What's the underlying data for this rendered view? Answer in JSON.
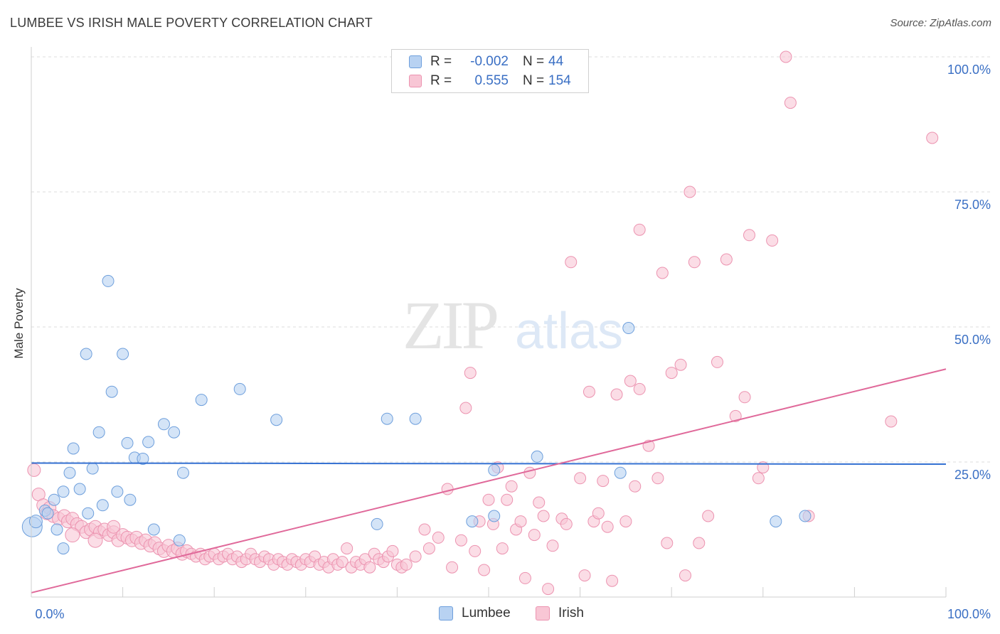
{
  "title": "LUMBEE VS IRISH MALE POVERTY CORRELATION CHART",
  "source": "Source: ZipAtlas.com",
  "watermark": {
    "zip": "ZIP",
    "atlas": "atlas"
  },
  "legend": {
    "rows": [
      {
        "r_label": "R =",
        "r_value": "-0.002",
        "n_label": "N =",
        "n_value": "44"
      },
      {
        "r_label": "R =",
        "r_value": "0.555",
        "n_label": "N =",
        "n_value": "154"
      }
    ]
  },
  "bottom_legend": {
    "lumbee": "Lumbee",
    "irish": "Irish"
  },
  "colors": {
    "lumbee_fill": "#b8d2f2",
    "lumbee_stroke": "#6e9fdc",
    "lumbee_line": "#3571d2",
    "irish_fill": "#f8c6d5",
    "irish_stroke": "#ec93b0",
    "irish_line": "#e0699a",
    "tick_label": "#3a6fc4",
    "grid": "#dddddd"
  },
  "chart_data": {
    "type": "scatter",
    "title": "LUMBEE VS IRISH MALE POVERTY CORRELATION CHART",
    "xlabel": "",
    "ylabel": "Male Poverty",
    "xlim": [
      0,
      100
    ],
    "ylim": [
      0,
      100
    ],
    "x_tick_labels": [
      "0.0%",
      "100.0%"
    ],
    "y_ticks": [
      {
        "value": 25,
        "label": "25.0%"
      },
      {
        "value": 50,
        "label": "50.0%"
      },
      {
        "value": 75,
        "label": "75.0%"
      },
      {
        "value": 100,
        "label": "100.0%"
      }
    ],
    "grid": true,
    "series": [
      {
        "name": "Lumbee",
        "r": -0.002,
        "n": 44,
        "trendline": {
          "x": [
            0,
            100
          ],
          "y": [
            24.8,
            24.6
          ]
        },
        "points": [
          [
            0.1,
            13.0,
            14
          ],
          [
            0.5,
            14.0,
            9
          ],
          [
            1.5,
            16.0,
            8
          ],
          [
            2.5,
            18.0,
            8
          ],
          [
            1.8,
            15.5,
            8
          ],
          [
            2.8,
            12.5,
            8
          ],
          [
            3.5,
            19.5,
            8
          ],
          [
            4.2,
            23.0,
            8
          ],
          [
            3.5,
            9.0,
            8
          ],
          [
            4.6,
            27.5,
            8
          ],
          [
            5.3,
            20.0,
            8
          ],
          [
            6.2,
            15.5,
            8
          ],
          [
            6.7,
            23.8,
            8
          ],
          [
            7.4,
            30.5,
            8
          ],
          [
            7.8,
            17.0,
            8
          ],
          [
            8.4,
            58.5,
            8
          ],
          [
            8.8,
            38.0,
            8
          ],
          [
            9.4,
            19.5,
            8
          ],
          [
            10.0,
            45.0,
            8
          ],
          [
            6.0,
            45.0,
            8
          ],
          [
            10.5,
            28.5,
            8
          ],
          [
            10.8,
            18.0,
            8
          ],
          [
            11.3,
            25.8,
            8
          ],
          [
            12.2,
            25.6,
            8
          ],
          [
            12.8,
            28.7,
            8
          ],
          [
            13.4,
            12.5,
            8
          ],
          [
            14.5,
            32.0,
            8
          ],
          [
            15.6,
            30.5,
            8
          ],
          [
            16.2,
            10.5,
            8
          ],
          [
            16.6,
            23.0,
            8
          ],
          [
            18.6,
            36.5,
            8
          ],
          [
            22.8,
            38.5,
            8
          ],
          [
            26.8,
            32.8,
            8
          ],
          [
            37.8,
            13.5,
            8
          ],
          [
            38.9,
            33.0,
            8
          ],
          [
            42.0,
            33.0,
            8
          ],
          [
            48.2,
            14.0,
            8
          ],
          [
            50.6,
            15.0,
            8
          ],
          [
            50.6,
            23.5,
            8
          ],
          [
            55.3,
            26.0,
            8
          ],
          [
            65.3,
            49.8,
            8
          ],
          [
            64.4,
            23.0,
            8
          ],
          [
            81.4,
            14.0,
            8
          ],
          [
            84.6,
            15.0,
            8
          ]
        ]
      },
      {
        "name": "Irish",
        "r": 0.555,
        "n": 154,
        "trendline": {
          "x": [
            0,
            100
          ],
          "y": [
            0.8,
            42.2
          ]
        },
        "points": [
          [
            0.3,
            23.5,
            9
          ],
          [
            0.8,
            19.0,
            9
          ],
          [
            1.3,
            17.0,
            9
          ],
          [
            1.7,
            15.5,
            9
          ],
          [
            2.0,
            16.5,
            9
          ],
          [
            2.4,
            15.0,
            9
          ],
          [
            3.0,
            14.5,
            9
          ],
          [
            3.6,
            15.0,
            9
          ],
          [
            4.0,
            14.0,
            9
          ],
          [
            4.5,
            14.5,
            9
          ],
          [
            5.0,
            13.5,
            9
          ],
          [
            5.5,
            13.0,
            9
          ],
          [
            6.0,
            12.0,
            9
          ],
          [
            6.5,
            12.5,
            9
          ],
          [
            7.0,
            13.0,
            9
          ],
          [
            7.5,
            12.0,
            9
          ],
          [
            8.0,
            12.5,
            9
          ],
          [
            8.5,
            11.5,
            9
          ],
          [
            9.0,
            12.0,
            9
          ],
          [
            9.5,
            10.5,
            9
          ],
          [
            10.0,
            11.5,
            9
          ],
          [
            10.5,
            11.0,
            9
          ],
          [
            11.0,
            10.5,
            9
          ],
          [
            11.5,
            11.0,
            9
          ],
          [
            12.0,
            10.0,
            9
          ],
          [
            12.5,
            10.5,
            9
          ],
          [
            13.0,
            9.5,
            9
          ],
          [
            13.5,
            10.0,
            9
          ],
          [
            14.0,
            9.0,
            9
          ],
          [
            14.5,
            8.5,
            9
          ],
          [
            15.0,
            9.5,
            9
          ],
          [
            15.5,
            8.5,
            9
          ],
          [
            16.0,
            9.0,
            9
          ],
          [
            16.5,
            8.0,
            9
          ],
          [
            17.0,
            8.5,
            9
          ],
          [
            17.5,
            8.0,
            8
          ],
          [
            18.0,
            7.5,
            8
          ],
          [
            18.5,
            8.0,
            8
          ],
          [
            19.0,
            7.0,
            8
          ],
          [
            19.5,
            7.5,
            8
          ],
          [
            20.0,
            8.0,
            8
          ],
          [
            20.5,
            7.0,
            8
          ],
          [
            21.0,
            7.5,
            8
          ],
          [
            21.5,
            8.0,
            8
          ],
          [
            22.0,
            7.0,
            8
          ],
          [
            22.5,
            7.5,
            8
          ],
          [
            23.0,
            6.5,
            8
          ],
          [
            23.5,
            7.0,
            8
          ],
          [
            24.0,
            8.0,
            8
          ],
          [
            24.5,
            7.0,
            8
          ],
          [
            25.0,
            6.5,
            8
          ],
          [
            25.5,
            7.5,
            8
          ],
          [
            26.0,
            7.0,
            8
          ],
          [
            26.5,
            6.0,
            8
          ],
          [
            27.0,
            7.0,
            8
          ],
          [
            27.5,
            6.5,
            8
          ],
          [
            28.0,
            6.0,
            8
          ],
          [
            28.5,
            7.0,
            8
          ],
          [
            29.0,
            6.5,
            8
          ],
          [
            29.5,
            6.0,
            8
          ],
          [
            30.0,
            7.0,
            8
          ],
          [
            30.5,
            6.5,
            8
          ],
          [
            31.0,
            7.5,
            8
          ],
          [
            31.5,
            6.0,
            8
          ],
          [
            32.0,
            6.5,
            8
          ],
          [
            32.5,
            5.5,
            8
          ],
          [
            33.0,
            7.0,
            8
          ],
          [
            33.5,
            6.0,
            8
          ],
          [
            34.0,
            6.5,
            8
          ],
          [
            34.5,
            9.0,
            8
          ],
          [
            35.0,
            5.5,
            8
          ],
          [
            35.5,
            6.5,
            8
          ],
          [
            36.0,
            6.0,
            8
          ],
          [
            36.5,
            7.0,
            8
          ],
          [
            37.0,
            5.5,
            8
          ],
          [
            37.5,
            8.0,
            8
          ],
          [
            38.0,
            7.0,
            8
          ],
          [
            38.5,
            6.5,
            8
          ],
          [
            39.0,
            7.5,
            8
          ],
          [
            39.5,
            8.5,
            8
          ],
          [
            40.0,
            6.0,
            8
          ],
          [
            40.5,
            5.5,
            8
          ],
          [
            41.0,
            6.0,
            8
          ],
          [
            42.0,
            7.5,
            8
          ],
          [
            43.0,
            12.5,
            8
          ],
          [
            43.5,
            9.0,
            8
          ],
          [
            44.5,
            11.0,
            8
          ],
          [
            45.5,
            20.0,
            8
          ],
          [
            46.0,
            5.5,
            8
          ],
          [
            47.0,
            10.5,
            8
          ],
          [
            47.5,
            35.0,
            8
          ],
          [
            48.0,
            41.5,
            8
          ],
          [
            48.5,
            8.5,
            8
          ],
          [
            49.0,
            14.0,
            8
          ],
          [
            49.5,
            5.0,
            8
          ],
          [
            50.0,
            18.0,
            8
          ],
          [
            50.5,
            13.5,
            8
          ],
          [
            51.0,
            24.0,
            8
          ],
          [
            51.5,
            9.0,
            8
          ],
          [
            52.0,
            18.0,
            8
          ],
          [
            52.5,
            20.5,
            8
          ],
          [
            53.0,
            12.5,
            8
          ],
          [
            53.5,
            14.0,
            8
          ],
          [
            54.0,
            3.5,
            8
          ],
          [
            54.5,
            23.0,
            8
          ],
          [
            55.0,
            11.5,
            8
          ],
          [
            55.5,
            17.5,
            8
          ],
          [
            56.0,
            15.0,
            8
          ],
          [
            56.5,
            1.5,
            8
          ],
          [
            57.0,
            9.5,
            8
          ],
          [
            58.0,
            14.5,
            8
          ],
          [
            58.5,
            13.5,
            8
          ],
          [
            59.0,
            62.0,
            8
          ],
          [
            60.0,
            22.0,
            8
          ],
          [
            60.5,
            4.0,
            8
          ],
          [
            61.0,
            38.0,
            8
          ],
          [
            61.5,
            14.0,
            8
          ],
          [
            62.0,
            15.5,
            8
          ],
          [
            62.5,
            21.5,
            8
          ],
          [
            63.0,
            13.0,
            8
          ],
          [
            63.5,
            3.0,
            8
          ],
          [
            64.0,
            37.5,
            8
          ],
          [
            65.0,
            14.0,
            8
          ],
          [
            66.5,
            38.5,
            8
          ],
          [
            66.0,
            20.5,
            8
          ],
          [
            66.5,
            68.0,
            8
          ],
          [
            67.5,
            28.0,
            8
          ],
          [
            68.5,
            22.0,
            8
          ],
          [
            69.5,
            10.0,
            8
          ],
          [
            69.0,
            60.0,
            8
          ],
          [
            70.0,
            41.5,
            8
          ],
          [
            71.0,
            43.0,
            8
          ],
          [
            71.5,
            4.0,
            8
          ],
          [
            72.0,
            75.0,
            8
          ],
          [
            72.5,
            62.0,
            8
          ],
          [
            73.0,
            10.0,
            8
          ],
          [
            74.0,
            15.0,
            8
          ],
          [
            75.0,
            43.5,
            8
          ],
          [
            76.0,
            62.5,
            8
          ],
          [
            77.0,
            33.5,
            8
          ],
          [
            78.0,
            37.0,
            8
          ],
          [
            78.5,
            67.0,
            8
          ],
          [
            79.5,
            22.0,
            8
          ],
          [
            80.0,
            24.0,
            8
          ],
          [
            81.0,
            66.0,
            8
          ],
          [
            82.5,
            100.0,
            8
          ],
          [
            83.0,
            91.5,
            8
          ],
          [
            85.0,
            15.0,
            8
          ],
          [
            94.0,
            32.5,
            8
          ],
          [
            98.5,
            85.0,
            8
          ],
          [
            4.5,
            11.5,
            10
          ],
          [
            7.0,
            10.5,
            10
          ],
          [
            9.0,
            13.0,
            9
          ],
          [
            65.5,
            40.0,
            8
          ]
        ]
      }
    ]
  }
}
